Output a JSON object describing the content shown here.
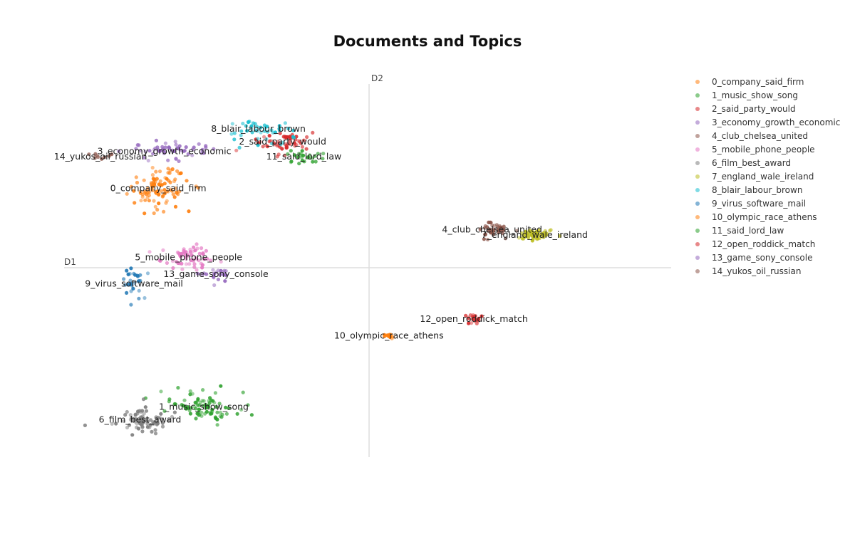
{
  "chart_data": {
    "type": "scatter",
    "title": "Documents and Topics",
    "xlabel": "D1",
    "ylabel": "D2",
    "xlim": [
      0,
      10
    ],
    "ylim": [
      0,
      10
    ],
    "grid": false,
    "legend": "right",
    "series": [
      {
        "name": "0_company_said_firm",
        "color": "#ff7f0e",
        "label": "0_company_said_firm",
        "center": [
          1.55,
          7.2
        ],
        "spread": [
          0.5,
          0.55
        ],
        "count": 95
      },
      {
        "name": "1_music_show_song",
        "color": "#2ca02c",
        "label": "1_music_show_song",
        "center": [
          2.3,
          1.35
        ],
        "spread": [
          0.55,
          0.4
        ],
        "count": 85
      },
      {
        "name": "2_said_party_would",
        "color": "#d62728",
        "label": "2_said_party_would",
        "center": [
          3.6,
          8.45
        ],
        "spread": [
          0.45,
          0.3
        ],
        "count": 55
      },
      {
        "name": "3_economy_growth_economic",
        "color": "#9467bd",
        "label": "3_economy_growth_economic",
        "center": [
          1.65,
          8.2
        ],
        "spread": [
          0.7,
          0.3
        ],
        "count": 55
      },
      {
        "name": "4_club_chelsea_united",
        "color": "#8c564b",
        "label": "4_club_chelsea_united",
        "center": [
          7.05,
          6.1
        ],
        "spread": [
          0.25,
          0.18
        ],
        "count": 50
      },
      {
        "name": "5_mobile_phone_people",
        "color": "#e377c2",
        "label": "5_mobile_phone_people",
        "center": [
          2.05,
          5.35
        ],
        "spread": [
          0.45,
          0.3
        ],
        "count": 60
      },
      {
        "name": "6_film_best_award",
        "color": "#7f7f7f",
        "label": "6_film_best_award",
        "center": [
          1.25,
          1.0
        ],
        "spread": [
          0.45,
          0.35
        ],
        "count": 80
      },
      {
        "name": "7_england_wale_ireland",
        "color": "#bcbd22",
        "label": "7_england_wale_ireland",
        "center": [
          7.75,
          5.95
        ],
        "spread": [
          0.3,
          0.15
        ],
        "count": 60
      },
      {
        "name": "8_blair_labour_brown",
        "color": "#17becf",
        "label": "8_blair_labour_brown",
        "center": [
          3.2,
          8.8
        ],
        "spread": [
          0.55,
          0.3
        ],
        "count": 45
      },
      {
        "name": "9_virus_software_mail",
        "color": "#1f77b4",
        "label": "9_virus_software_mail",
        "center": [
          1.15,
          4.65
        ],
        "spread": [
          0.3,
          0.4
        ],
        "count": 30
      },
      {
        "name": "10_olympic_race_athens",
        "color": "#ff7f0e",
        "label": "10_olympic_race_athens",
        "center": [
          5.35,
          3.25
        ],
        "spread": [
          0.08,
          0.08
        ],
        "count": 12
      },
      {
        "name": "11_said_lord_law",
        "color": "#2ca02c",
        "label": "11_said_lord_law",
        "center": [
          3.95,
          8.05
        ],
        "spread": [
          0.35,
          0.2
        ],
        "count": 25
      },
      {
        "name": "12_open_roddick_match",
        "color": "#d62728",
        "label": "12_open_roddick_match",
        "center": [
          6.75,
          3.7
        ],
        "spread": [
          0.12,
          0.15
        ],
        "count": 20
      },
      {
        "name": "13_game_sony_console",
        "color": "#9467bd",
        "label": "13_game_sony_console",
        "center": [
          2.5,
          4.9
        ],
        "spread": [
          0.35,
          0.18
        ],
        "count": 22
      },
      {
        "name": "14_yukos_oil_russian",
        "color": "#8c564b",
        "label": "14_yukos_oil_russian",
        "center": [
          0.6,
          8.05
        ],
        "spread": [
          0.25,
          0.08
        ],
        "count": 10
      }
    ]
  }
}
